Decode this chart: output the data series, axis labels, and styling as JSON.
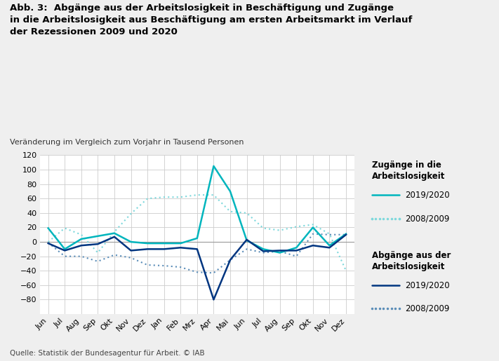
{
  "title": "Abb. 3:  Abgänge aus der Arbeitslosigkeit in Beschäftigung und Zugänge\nin die Arbeitslosigkeit aus Beschäftigung am ersten Arbeitsmarkt im Verlauf\nder Rezessionen 2009 und 2020",
  "subtitle": "Veränderung im Vergleich zum Vorjahr in Tausend Personen",
  "source": "Quelle: Statistik der Bundesagentur für Arbeit. © IAB",
  "x_labels": [
    "Jun",
    "Jul",
    "Aug",
    "Sep",
    "Okt",
    "Nov",
    "Dez",
    "Jan",
    "Feb",
    "Mrz",
    "Apr",
    "Mai",
    "Jun",
    "Jul",
    "Aug",
    "Sep",
    "Okt",
    "Nov",
    "Dez"
  ],
  "zugaenge_2019_2020": [
    19,
    -10,
    4,
    8,
    12,
    0,
    -2,
    -2,
    -2,
    5,
    105,
    70,
    2,
    -10,
    -15,
    -8,
    20,
    -5,
    11
  ],
  "zugaenge_2008_2009": [
    0,
    19,
    10,
    -15,
    14,
    39,
    60,
    62,
    62,
    65,
    65,
    42,
    40,
    19,
    16,
    21,
    24,
    11,
    -40
  ],
  "abgaenge_2019_2020": [
    -2,
    -12,
    -5,
    -3,
    7,
    -12,
    -10,
    -10,
    -8,
    -10,
    -80,
    -25,
    3,
    -13,
    -12,
    -12,
    -5,
    -8,
    10
  ],
  "abgaenge_2008_2009": [
    -1,
    -20,
    -20,
    -27,
    -18,
    -22,
    -32,
    -33,
    -35,
    -42,
    -43,
    -25,
    -10,
    -15,
    -13,
    -20,
    11,
    10,
    10
  ],
  "color_zugaenge_2020": "#00b5bd",
  "color_zugaenge_2009": "#7ed8dc",
  "color_abgaenge_2020": "#003580",
  "color_abgaenge_2009": "#5b8db8",
  "ylim": [
    -100,
    120
  ],
  "yticks": [
    -80,
    -60,
    -40,
    -20,
    0,
    20,
    40,
    60,
    80,
    100,
    120
  ],
  "background_color": "#efefef",
  "plot_bg_color": "#ffffff",
  "grid_color": "#cccccc",
  "legend_header1": "Zugänge in die\nArbeitslosigkeit",
  "legend_header2": "Abgänge aus der\nArbeitslosigkeit",
  "legend_label1": "2019/2020",
  "legend_label2": "2008/2009",
  "legend_label3": "2019/2020",
  "legend_label4": "2008/2009"
}
